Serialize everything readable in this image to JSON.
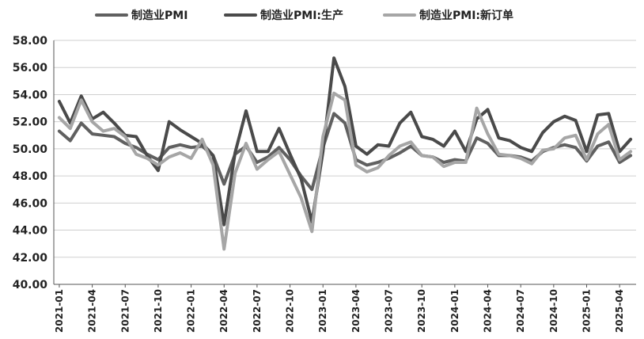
{
  "chart_data": {
    "type": "line",
    "title": "",
    "xlabel": "",
    "ylabel": "",
    "ylim": [
      40,
      58
    ],
    "y_ticks": [
      "40.00",
      "42.00",
      "44.00",
      "46.00",
      "48.00",
      "50.00",
      "52.00",
      "54.00",
      "56.00",
      "58.00"
    ],
    "x_tick_labels": [
      "2021-01",
      "2021-04",
      "2021-07",
      "2021-10",
      "2022-01",
      "2022-04",
      "2022-07",
      "2022-10",
      "2023-01",
      "2023-04",
      "2023-07",
      "2023-10",
      "2024-01",
      "2024-04",
      "2024-07",
      "2024-10",
      "2025-01",
      "2025-04"
    ],
    "x": [
      "2021-01",
      "2021-02",
      "2021-03",
      "2021-04",
      "2021-05",
      "2021-06",
      "2021-07",
      "2021-08",
      "2021-09",
      "2021-10",
      "2021-11",
      "2021-12",
      "2022-01",
      "2022-02",
      "2022-03",
      "2022-04",
      "2022-05",
      "2022-06",
      "2022-07",
      "2022-08",
      "2022-09",
      "2022-10",
      "2022-11",
      "2022-12",
      "2023-01",
      "2023-02",
      "2023-03",
      "2023-04",
      "2023-05",
      "2023-06",
      "2023-07",
      "2023-08",
      "2023-09",
      "2023-10",
      "2023-11",
      "2023-12",
      "2024-01",
      "2024-02",
      "2024-03",
      "2024-04",
      "2024-05",
      "2024-06",
      "2024-07",
      "2024-08",
      "2024-09",
      "2024-10",
      "2024-11",
      "2024-12",
      "2025-01",
      "2025-02",
      "2025-03",
      "2025-04",
      "2025-05"
    ],
    "grid": "horizontal",
    "legend_position": "top",
    "series": [
      {
        "name": "制造业PMI",
        "color": "#606060",
        "values": [
          51.3,
          50.6,
          51.9,
          51.1,
          51.0,
          50.9,
          50.4,
          50.1,
          49.6,
          49.2,
          50.1,
          50.3,
          50.1,
          50.2,
          49.5,
          47.4,
          49.6,
          50.2,
          49.0,
          49.4,
          50.1,
          49.2,
          48.0,
          47.0,
          50.1,
          52.6,
          51.9,
          49.2,
          48.8,
          49.0,
          49.3,
          49.7,
          50.2,
          49.5,
          49.4,
          49.0,
          49.2,
          49.1,
          50.8,
          50.4,
          49.5,
          49.5,
          49.4,
          49.1,
          49.8,
          50.1,
          50.3,
          50.1,
          49.1,
          50.2,
          50.5,
          49.0,
          49.5
        ]
      },
      {
        "name": "制造业PMI:生产",
        "color": "#4a4a4a",
        "values": [
          53.5,
          51.9,
          53.9,
          52.2,
          52.7,
          51.9,
          51.0,
          50.9,
          49.5,
          48.4,
          52.0,
          51.4,
          50.9,
          50.4,
          49.5,
          44.4,
          49.7,
          52.8,
          49.8,
          49.8,
          51.5,
          49.6,
          47.8,
          44.6,
          49.8,
          56.7,
          54.6,
          50.2,
          49.6,
          50.3,
          50.2,
          51.9,
          52.7,
          50.9,
          50.7,
          50.2,
          51.3,
          49.8,
          52.2,
          52.9,
          50.8,
          50.6,
          50.1,
          49.8,
          51.2,
          52.0,
          52.4,
          52.1,
          49.8,
          52.5,
          52.6,
          49.8,
          50.7
        ]
      },
      {
        "name": "制造业PMI:新订单",
        "color": "#a6a6a6",
        "values": [
          52.3,
          51.5,
          53.6,
          52.0,
          51.3,
          51.5,
          50.9,
          49.6,
          49.3,
          48.8,
          49.4,
          49.7,
          49.3,
          50.7,
          48.8,
          42.6,
          48.2,
          50.4,
          48.5,
          49.2,
          49.8,
          48.1,
          46.4,
          43.9,
          50.9,
          54.1,
          53.6,
          48.8,
          48.3,
          48.6,
          49.5,
          50.2,
          50.5,
          49.5,
          49.4,
          48.7,
          49.0,
          49.0,
          53.0,
          51.1,
          49.6,
          49.5,
          49.3,
          48.9,
          49.9,
          50.0,
          50.8,
          51.0,
          49.2,
          51.1,
          51.8,
          49.2,
          49.8
        ]
      }
    ]
  }
}
